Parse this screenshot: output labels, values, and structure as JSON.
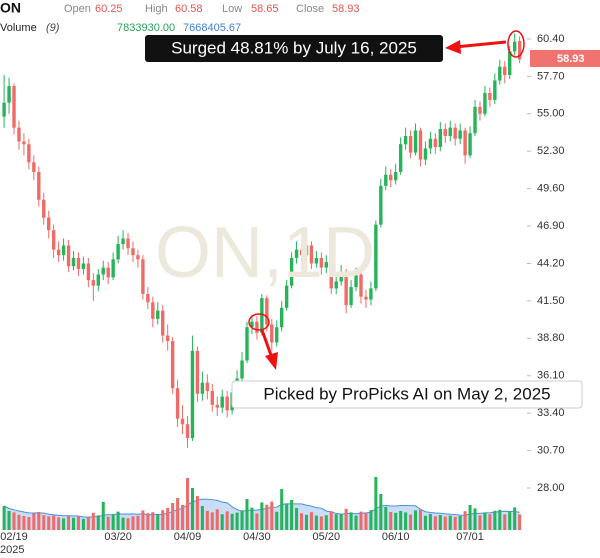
{
  "chart_data": {
    "type": "candlestick",
    "symbol": "ON",
    "ohlc_labels": {
      "open": "Open",
      "high": "High",
      "low": "Low",
      "close": "Close"
    },
    "ohlc_values": {
      "open": 60.25,
      "high": 60.58,
      "low": 58.65,
      "close": 58.93
    },
    "volume_label": "Volume",
    "volume_period": "(9)",
    "volume_readout": [
      "7833930.00",
      "7668405.67"
    ],
    "watermark": "ON,1D",
    "categories": [
      null,
      null,
      "02/19",
      null,
      null,
      null,
      null,
      null,
      null,
      null,
      null,
      null,
      null,
      null,
      null,
      null,
      null,
      null,
      null,
      null,
      null,
      null,
      null,
      "03/20",
      null,
      null,
      null,
      null,
      null,
      null,
      null,
      null,
      null,
      null,
      null,
      null,
      null,
      "04/09",
      null,
      null,
      null,
      null,
      null,
      null,
      null,
      null,
      null,
      null,
      null,
      null,
      null,
      "04/30",
      null,
      null,
      null,
      null,
      null,
      null,
      null,
      null,
      null,
      null,
      null,
      null,
      null,
      "05/20",
      null,
      null,
      null,
      null,
      null,
      null,
      null,
      null,
      null,
      null,
      null,
      null,
      null,
      "06/10",
      null,
      null,
      null,
      null,
      null,
      null,
      null,
      null,
      null,
      null,
      null,
      null,
      null,
      null,
      "07/01",
      null,
      null,
      null,
      null,
      null,
      null,
      null,
      null,
      null,
      null
    ],
    "year_label": "2025",
    "open": [
      54.8,
      55.8,
      57.0,
      54.0,
      53.0,
      52.8,
      51.5,
      50.8,
      48.8,
      47.5,
      46.6,
      45.2,
      44.8,
      45.5,
      44.0,
      44.6,
      43.8,
      44.2,
      43.0,
      42.6,
      43.4,
      43.9,
      43.2,
      44.5,
      45.6,
      46.0,
      45.3,
      44.8,
      44.5,
      42.0,
      41.4,
      40.2,
      40.8,
      39.0,
      38.6,
      35.2,
      33.0,
      32.6,
      31.6,
      37.9,
      34.8,
      35.6,
      35.0,
      34.0,
      33.8,
      34.6,
      33.6,
      34.9,
      35.9,
      37.2,
      39.6,
      40.0,
      39.2,
      41.7,
      39.8,
      38.5,
      39.6,
      41.0,
      42.6,
      44.6,
      45.2,
      44.8,
      45.5,
      44.2,
      44.6,
      43.9,
      44.3,
      42.4,
      42.9,
      43.6,
      41.2,
      42.5,
      43.4,
      41.8,
      41.6,
      42.4,
      47.0,
      49.8,
      50.6,
      50.2,
      50.8,
      52.8,
      53.4,
      52.2,
      53.8,
      51.7,
      52.5,
      53.2,
      52.6,
      53.9,
      53.4,
      54.0,
      53.2,
      53.8,
      52.0,
      53.6,
      55.5,
      55.0,
      56.5,
      56.0,
      57.4,
      58.4,
      57.8,
      59.5,
      60.25
    ],
    "high": [
      57.8,
      57.6,
      57.2,
      54.5,
      53.6,
      53.2,
      52.0,
      51.2,
      49.3,
      48.0,
      47.0,
      45.8,
      46.0,
      45.9,
      45.1,
      45.0,
      44.7,
      44.6,
      43.5,
      43.8,
      44.4,
      44.3,
      45.0,
      46.2,
      46.6,
      46.4,
      45.8,
      45.2,
      44.8,
      42.5,
      41.8,
      41.4,
      41.2,
      39.8,
      38.9,
      35.8,
      34.0,
      33.2,
      39.0,
      38.2,
      36.4,
      36.2,
      35.5,
      34.6,
      35.1,
      35.0,
      35.4,
      36.5,
      37.8,
      40.0,
      40.5,
      40.4,
      42.0,
      41.9,
      40.2,
      40.1,
      41.5,
      43.0,
      45.0,
      45.8,
      45.6,
      46.0,
      45.8,
      45.1,
      45.0,
      44.8,
      44.6,
      43.4,
      44.1,
      43.8,
      43.0,
      43.9,
      43.6,
      42.3,
      42.9,
      47.3,
      50.3,
      51.2,
      51.0,
      51.4,
      53.3,
      54.0,
      53.8,
      54.3,
      54.0,
      53.0,
      53.7,
      53.6,
      54.4,
      54.3,
      54.5,
      54.3,
      54.3,
      54.0,
      54.1,
      56.0,
      55.9,
      57.0,
      56.9,
      57.9,
      58.9,
      58.8,
      59.9,
      60.8,
      60.58
    ],
    "low": [
      54.0,
      55.0,
      53.5,
      52.4,
      52.0,
      51.0,
      50.2,
      48.3,
      47.0,
      46.0,
      44.6,
      44.3,
      44.4,
      43.6,
      43.7,
      43.3,
      43.4,
      42.5,
      41.5,
      42.2,
      43.0,
      42.7,
      43.0,
      44.2,
      45.2,
      44.8,
      44.3,
      43.9,
      41.6,
      40.9,
      39.6,
      39.8,
      38.5,
      37.9,
      34.8,
      32.4,
      31.9,
      30.9,
      31.4,
      34.2,
      34.3,
      34.4,
      33.5,
      33.2,
      33.4,
      33.1,
      33.3,
      34.6,
      35.6,
      37.0,
      39.1,
      38.7,
      39.0,
      39.3,
      37.9,
      38.2,
      39.3,
      40.8,
      42.4,
      44.2,
      44.3,
      44.5,
      43.8,
      43.9,
      43.4,
      43.5,
      42.0,
      42.0,
      42.6,
      40.6,
      41.0,
      42.2,
      41.3,
      41.0,
      41.2,
      42.2,
      46.8,
      49.5,
      49.7,
      49.9,
      50.6,
      52.4,
      51.8,
      52.0,
      51.2,
      51.3,
      52.1,
      52.1,
      52.3,
      52.9,
      53.0,
      52.7,
      52.8,
      51.4,
      51.8,
      53.4,
      54.5,
      54.8,
      55.5,
      55.7,
      57.1,
      57.2,
      57.5,
      59.2,
      58.65
    ],
    "close": [
      55.8,
      57.0,
      54.0,
      53.0,
      52.8,
      51.5,
      50.8,
      48.8,
      47.5,
      46.6,
      45.2,
      44.8,
      45.5,
      44.0,
      44.6,
      43.8,
      44.2,
      43.0,
      42.6,
      43.4,
      43.9,
      43.2,
      44.5,
      45.6,
      46.0,
      45.3,
      44.8,
      44.5,
      42.0,
      41.4,
      40.2,
      40.8,
      39.0,
      38.6,
      35.2,
      33.0,
      32.6,
      31.6,
      37.9,
      34.8,
      35.6,
      35.0,
      34.0,
      33.8,
      34.6,
      33.6,
      34.9,
      35.9,
      37.2,
      39.6,
      40.0,
      39.2,
      41.7,
      39.8,
      38.5,
      39.6,
      41.0,
      42.6,
      44.6,
      45.2,
      44.8,
      45.5,
      44.2,
      44.6,
      43.9,
      44.3,
      42.4,
      42.9,
      43.6,
      41.2,
      42.5,
      43.4,
      41.8,
      41.6,
      42.4,
      47.0,
      49.8,
      50.6,
      50.2,
      50.8,
      52.8,
      53.4,
      52.2,
      53.8,
      51.7,
      52.5,
      53.2,
      52.6,
      53.9,
      53.4,
      54.0,
      53.2,
      53.8,
      52.0,
      53.6,
      55.5,
      55.0,
      56.5,
      56.0,
      57.4,
      58.4,
      57.8,
      59.5,
      60.2,
      58.93
    ],
    "volume": [
      12000000,
      9500000,
      8800000,
      7600000,
      7000000,
      6500000,
      8200000,
      9000000,
      7400000,
      6800000,
      7200000,
      6300000,
      5800000,
      6900000,
      6100000,
      7000000,
      5600000,
      6400000,
      8600000,
      7300000,
      14000000,
      6600000,
      7800000,
      9200000,
      6200000,
      5900000,
      6800000,
      7100000,
      9800000,
      8400000,
      8900000,
      7500000,
      9900000,
      11000000,
      13500000,
      16000000,
      12500000,
      26000000,
      21000000,
      17000000,
      12000000,
      9600000,
      8800000,
      10400000,
      7900000,
      9300000,
      8100000,
      8700000,
      9800000,
      15500000,
      11200000,
      8300000,
      13800000,
      12600000,
      14200000,
      9100000,
      20500000,
      12800000,
      15000000,
      11000000,
      8400000,
      7600000,
      8900000,
      7200000,
      6800000,
      7400000,
      9400000,
      7900000,
      8100000,
      10600000,
      8800000,
      7200000,
      9200000,
      8300000,
      9900000,
      26500000,
      18000000,
      11500000,
      9000000,
      8600000,
      9500000,
      8800000,
      7700000,
      9800000,
      10200000,
      7100000,
      8000000,
      6900000,
      7500000,
      6700000,
      7200000,
      6600000,
      7000000,
      9400000,
      12500000,
      10800000,
      7300000,
      8800000,
      7900000,
      9600000,
      10100000,
      7800000,
      9200000,
      11300000,
      7833930
    ],
    "up_color": "#26b35a",
    "down_color": "#ef6b68",
    "ylim": [
      24.97,
      63.21
    ],
    "yticks": [
      {
        "value": 28,
        "label": "28.00"
      },
      {
        "value": 30.7,
        "label": "30.70"
      },
      {
        "value": 33.4,
        "label": "33.40"
      },
      {
        "value": 36.1,
        "label": "36.10"
      },
      {
        "value": 38.8,
        "label": "38.80"
      },
      {
        "value": 41.5,
        "label": "41.50"
      },
      {
        "value": 44.2,
        "label": "44.20"
      },
      {
        "value": 46.9,
        "label": "46.90"
      },
      {
        "value": 49.6,
        "label": "49.60"
      },
      {
        "value": 52.3,
        "label": "52.30"
      },
      {
        "value": 55,
        "label": "55.00"
      },
      {
        "value": 57.7,
        "label": "57.70"
      },
      {
        "value": 60.4,
        "label": "60.40"
      }
    ],
    "volume_ylim": [
      0,
      52000000
    ],
    "annotations": [
      "Surged 48.81% by July 16, 2025",
      "Picked by ProPicks AI on May 2, 2025"
    ]
  }
}
